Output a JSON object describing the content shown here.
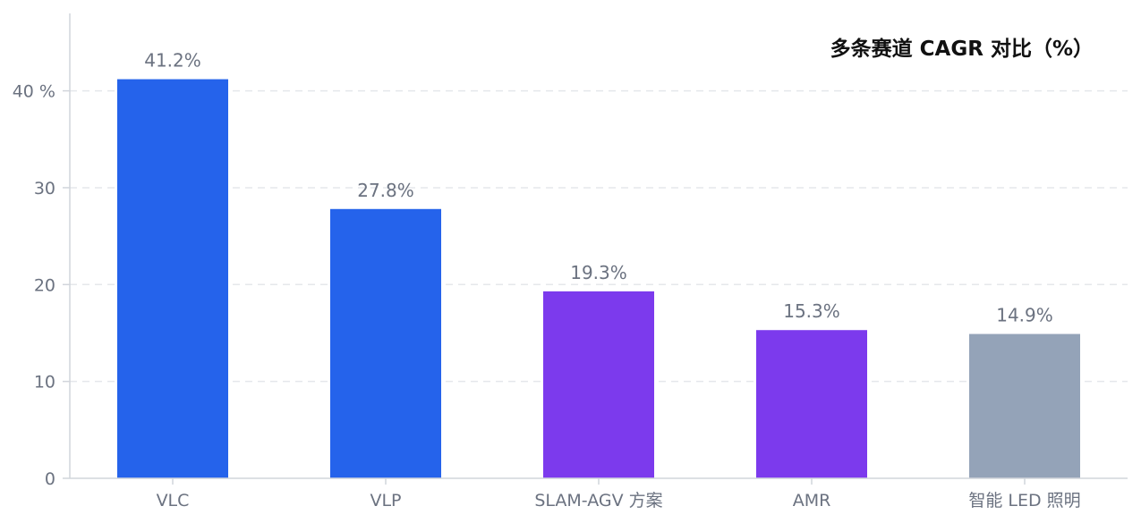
{
  "chart_data": {
    "type": "bar",
    "title": "多条赛道 CAGR 对比（%）",
    "categories": [
      "VLC",
      "VLP",
      "SLAM-AGV 方案",
      "AMR",
      "智能 LED 照明"
    ],
    "values": [
      41.2,
      27.8,
      19.3,
      15.3,
      14.9
    ],
    "value_labels": [
      "41.2%",
      "27.8%",
      "19.3%",
      "15.3%",
      "14.9%"
    ],
    "bar_colors": [
      "#2563eb",
      "#2563eb",
      "#7c3aed",
      "#7c3aed",
      "#94a3b8"
    ],
    "yticks": [
      0,
      10,
      20,
      30,
      40
    ],
    "ytick_labels": [
      "0",
      "10",
      "20",
      "30",
      "40 %"
    ],
    "ylim": [
      0,
      48
    ],
    "grid": true,
    "xlabel": "",
    "ylabel": ""
  }
}
